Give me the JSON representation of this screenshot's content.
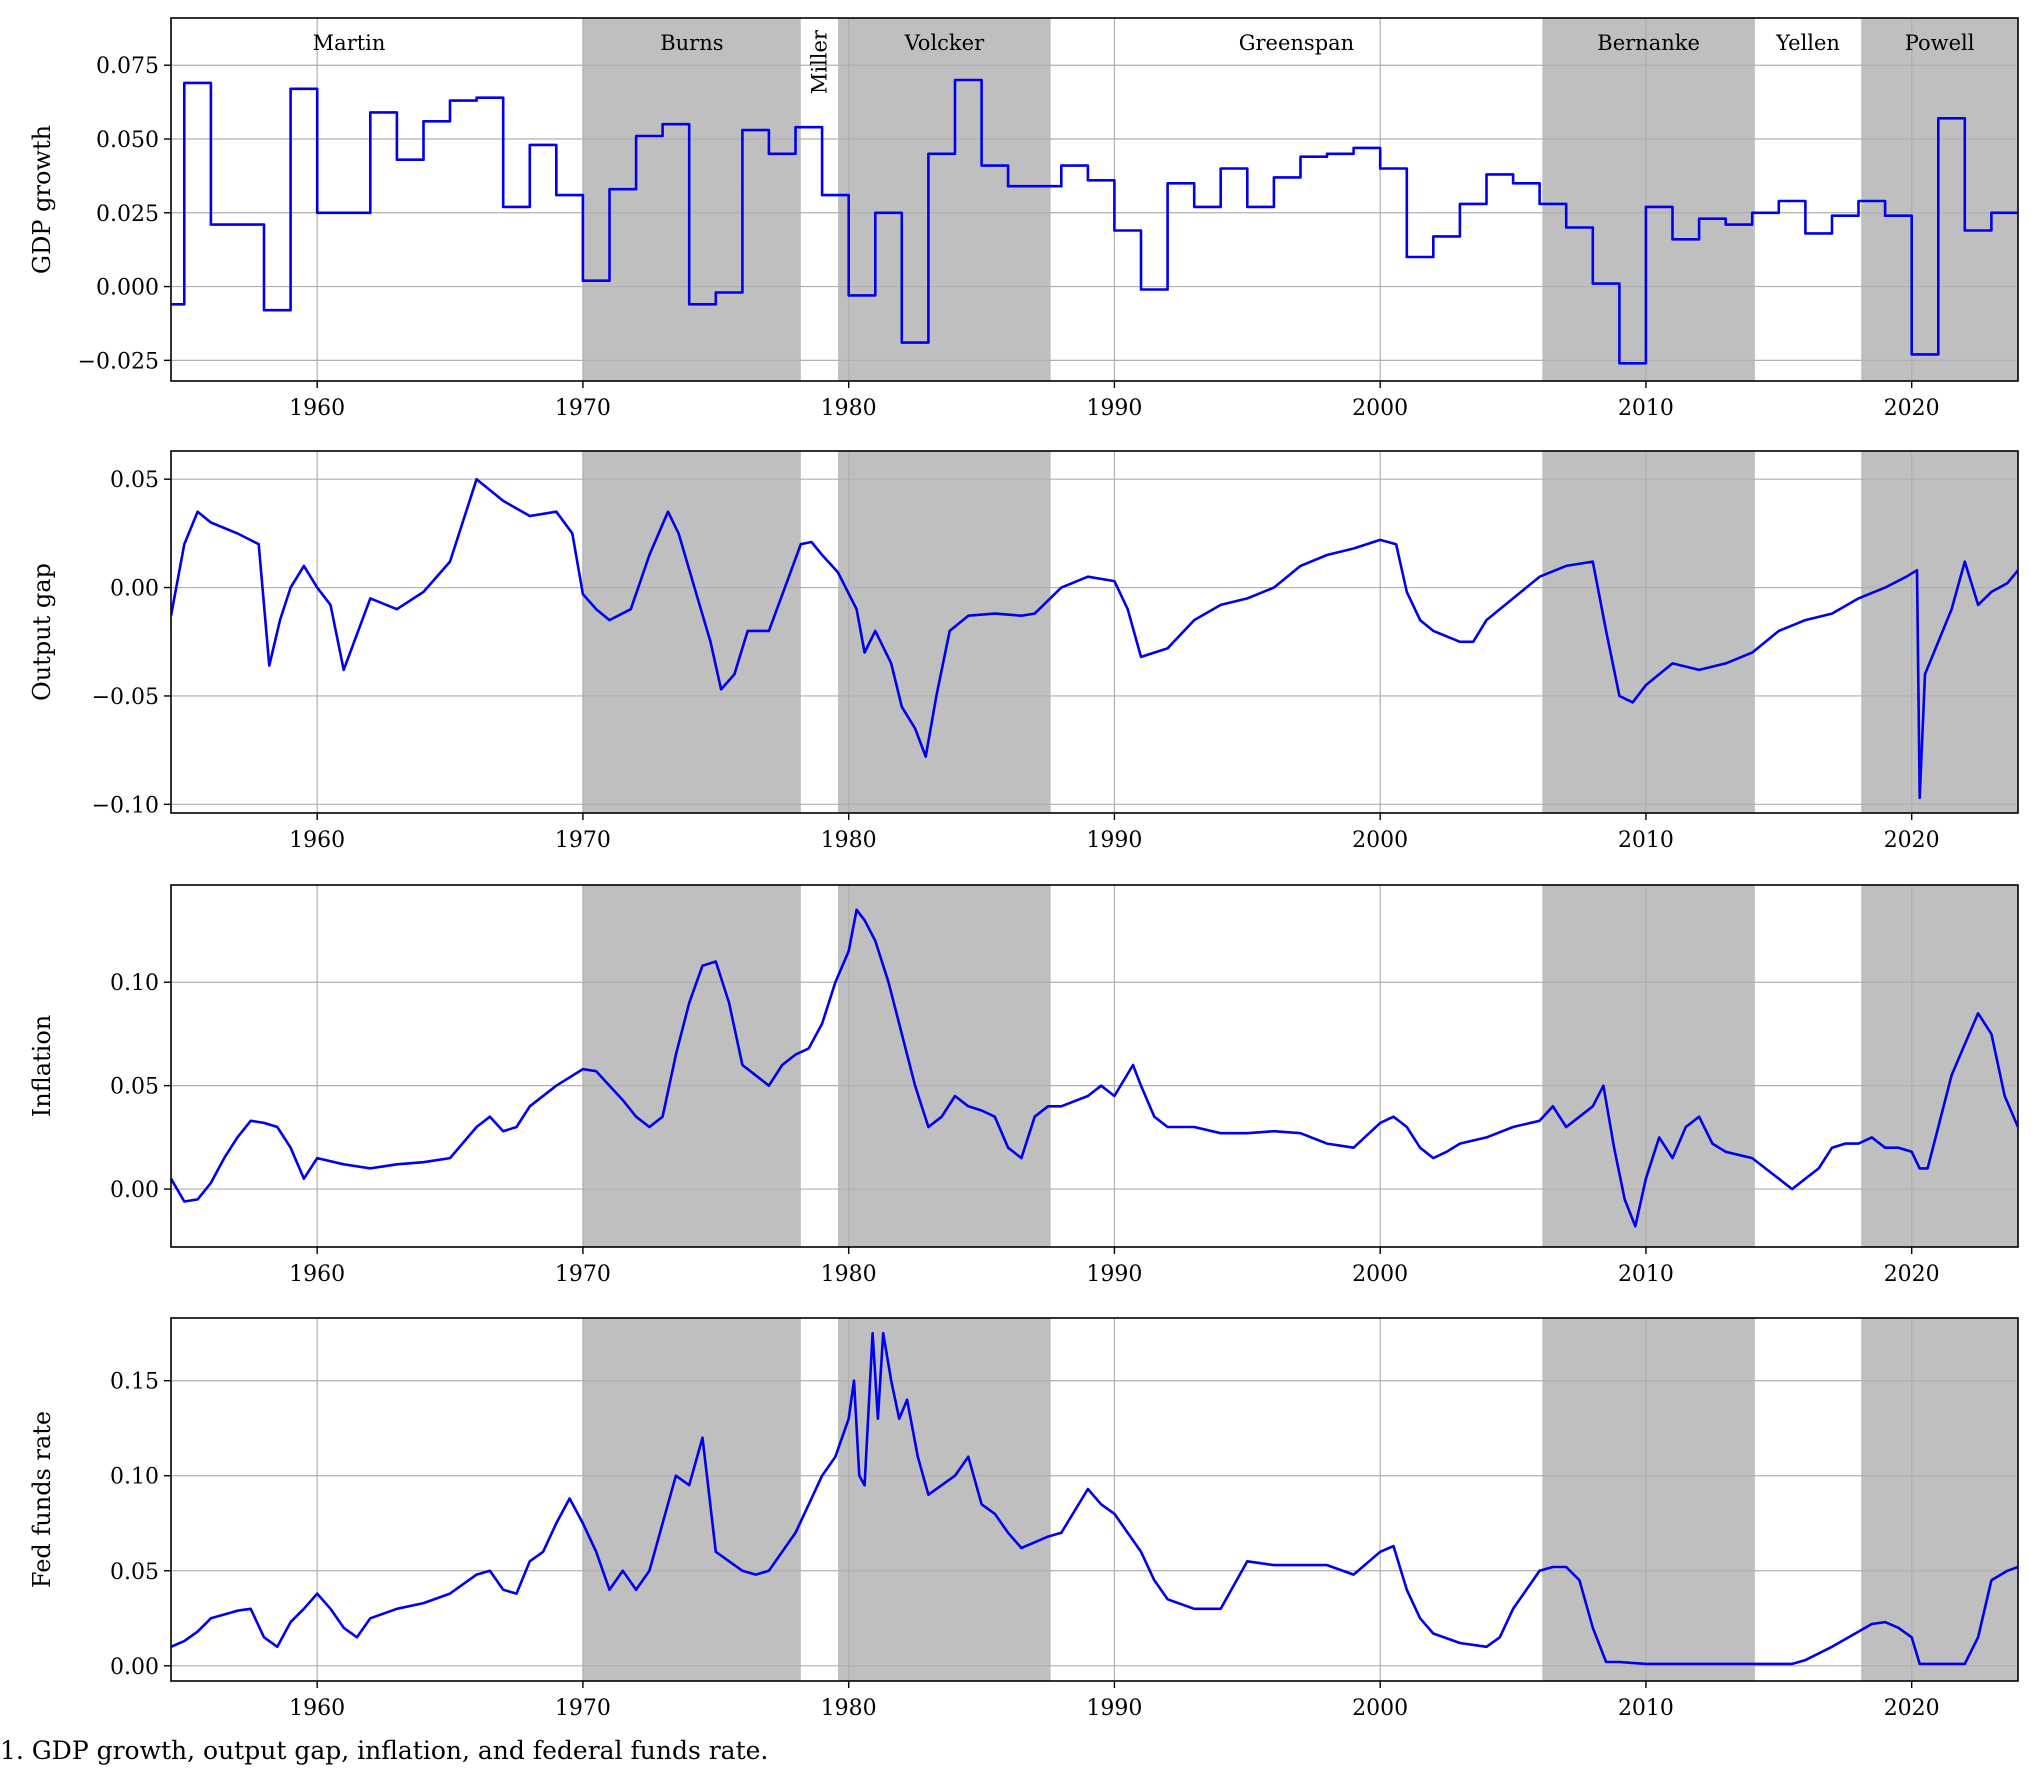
{
  "figure": {
    "caption": "1. GDP growth, output gap, inflation, and federal funds rate."
  },
  "colors": {
    "line": "#0000ee",
    "shade": "#bfbfbf",
    "grid": "#b0b0b0",
    "axis": "#000000"
  },
  "chairs": [
    {
      "name": "Martin",
      "start": 1951.2,
      "end": 1970.0,
      "shaded": false
    },
    {
      "name": "Burns",
      "start": 1970.0,
      "end": 1978.2,
      "shaded": true
    },
    {
      "name": "Miller",
      "start": 1978.2,
      "end": 1979.6,
      "shaded": false,
      "rotated": true
    },
    {
      "name": "Volcker",
      "start": 1979.6,
      "end": 1987.6,
      "shaded": true
    },
    {
      "name": "Greenspan",
      "start": 1987.6,
      "end": 2006.1,
      "shaded": false
    },
    {
      "name": "Bernanke",
      "start": 2006.1,
      "end": 2014.1,
      "shaded": true
    },
    {
      "name": "Yellen",
      "start": 2014.1,
      "end": 2018.1,
      "shaded": false
    },
    {
      "name": "Powell",
      "start": 2018.1,
      "end": 2024.0,
      "shaded": true
    }
  ],
  "chart_data": [
    {
      "type": "line",
      "ylabel": "GDP growth",
      "xlim": [
        1954.5,
        2024.0
      ],
      "ylim": [
        -0.032,
        0.091
      ],
      "xticks": [
        1960,
        1970,
        1980,
        1990,
        2000,
        2010,
        2020
      ],
      "yticks": [
        -0.025,
        0.0,
        0.025,
        0.05,
        0.075
      ],
      "ytick_labels": [
        "−0.025",
        "0.000",
        "0.025",
        "0.050",
        "0.075"
      ],
      "step": true,
      "grid": true,
      "show_chair_labels": true,
      "series": [
        {
          "x": [
            1954.5,
            1955.0,
            1956.0,
            1957.0,
            1958.0,
            1959.0,
            1960.0,
            1962.0,
            1963.0,
            1964.0,
            1965.0,
            1966.0,
            1967.0,
            1968.0,
            1969.0,
            1970.0,
            1971.0,
            1972.0,
            1973.0,
            1974.0,
            1975.0,
            1976.0,
            1977.0,
            1978.0,
            1979.0,
            1980.0,
            1981.0,
            1982.0,
            1983.0,
            1984.0,
            1985.0,
            1986.0,
            1988.0,
            1989.0,
            1990.0,
            1991.0,
            1992.0,
            1993.0,
            1994.0,
            1995.0,
            1996.0,
            1997.0,
            1998.0,
            1999.0,
            2000.0,
            2001.0,
            2002.0,
            2003.0,
            2004.0,
            2005.0,
            2006.0,
            2007.0,
            2008.0,
            2009.0,
            2010.0,
            2011.0,
            2012.0,
            2013.0,
            2014.0,
            2015.0,
            2016.0,
            2017.0,
            2018.0,
            2019.0,
            2020.0,
            2021.0,
            2022.0,
            2023.0,
            2024.0
          ],
          "y": [
            -0.006,
            0.069,
            0.021,
            0.021,
            -0.008,
            0.067,
            0.025,
            0.059,
            0.043,
            0.056,
            0.063,
            0.064,
            0.027,
            0.048,
            0.031,
            0.002,
            0.033,
            0.051,
            0.055,
            -0.006,
            -0.002,
            0.053,
            0.045,
            0.054,
            0.031,
            -0.003,
            0.025,
            -0.019,
            0.045,
            0.07,
            0.041,
            0.034,
            0.041,
            0.036,
            0.019,
            -0.001,
            0.035,
            0.027,
            0.04,
            0.027,
            0.037,
            0.044,
            0.045,
            0.047,
            0.04,
            0.01,
            0.017,
            0.028,
            0.038,
            0.035,
            0.028,
            0.02,
            0.001,
            -0.026,
            0.027,
            0.016,
            0.023,
            0.021,
            0.025,
            0.029,
            0.018,
            0.024,
            0.029,
            0.024,
            -0.023,
            0.057,
            0.019,
            0.025,
            0.025
          ]
        }
      ]
    },
    {
      "type": "line",
      "ylabel": "Output gap",
      "xlim": [
        1954.5,
        2024.0
      ],
      "ylim": [
        -0.104,
        0.063
      ],
      "xticks": [
        1960,
        1970,
        1980,
        1990,
        2000,
        2010,
        2020
      ],
      "yticks": [
        -0.1,
        -0.05,
        0.0,
        0.05
      ],
      "ytick_labels": [
        "−0.10",
        "−0.05",
        "0.00",
        "0.05"
      ],
      "step": false,
      "grid": true,
      "series": [
        {
          "x": [
            1954.5,
            1955.0,
            1955.5,
            1956.0,
            1957.0,
            1957.8,
            1958.2,
            1958.6,
            1959.0,
            1959.5,
            1960.0,
            1960.5,
            1961.0,
            1962.0,
            1963.0,
            1964.0,
            1965.0,
            1966.0,
            1967.0,
            1968.0,
            1969.0,
            1969.6,
            1970.0,
            1970.5,
            1971.0,
            1971.8,
            1972.5,
            1973.2,
            1973.6,
            1974.2,
            1974.8,
            1975.2,
            1975.7,
            1976.2,
            1977.0,
            1977.6,
            1978.2,
            1978.6,
            1979.0,
            1979.6,
            1980.3,
            1980.6,
            1981.0,
            1981.6,
            1982.0,
            1982.5,
            1982.9,
            1983.3,
            1983.8,
            1984.5,
            1985.5,
            1986.5,
            1987.0,
            1988.0,
            1989.0,
            1990.0,
            1990.5,
            1991.0,
            1991.5,
            1992.0,
            1993.0,
            1994.0,
            1995.0,
            1996.0,
            1997.0,
            1998.0,
            1999.0,
            2000.0,
            2000.6,
            2001.0,
            2001.5,
            2002.0,
            2003.0,
            2003.5,
            2004.0,
            2005.0,
            2006.0,
            2007.0,
            2008.0,
            2008.5,
            2009.0,
            2009.5,
            2010.0,
            2011.0,
            2012.0,
            2013.0,
            2014.0,
            2015.0,
            2016.0,
            2017.0,
            2018.0,
            2019.0,
            2019.8,
            2020.2,
            2020.3,
            2020.5,
            2021.0,
            2021.5,
            2022.0,
            2022.5,
            2023.0,
            2023.6,
            2024.0
          ],
          "y": [
            -0.013,
            0.02,
            0.035,
            0.03,
            0.025,
            0.02,
            -0.036,
            -0.015,
            0.0,
            0.01,
            0.0,
            -0.008,
            -0.038,
            -0.005,
            -0.01,
            -0.002,
            0.012,
            0.05,
            0.04,
            0.033,
            0.035,
            0.025,
            -0.003,
            -0.01,
            -0.015,
            -0.01,
            0.015,
            0.035,
            0.025,
            0.0,
            -0.025,
            -0.047,
            -0.04,
            -0.02,
            -0.02,
            0.0,
            0.02,
            0.021,
            0.015,
            0.007,
            -0.01,
            -0.03,
            -0.02,
            -0.035,
            -0.055,
            -0.065,
            -0.078,
            -0.05,
            -0.02,
            -0.013,
            -0.012,
            -0.013,
            -0.012,
            0.0,
            0.005,
            0.003,
            -0.01,
            -0.032,
            -0.03,
            -0.028,
            -0.015,
            -0.008,
            -0.005,
            0.0,
            0.01,
            0.015,
            0.018,
            0.022,
            0.02,
            -0.002,
            -0.015,
            -0.02,
            -0.025,
            -0.025,
            -0.015,
            -0.005,
            0.005,
            0.01,
            0.012,
            -0.02,
            -0.05,
            -0.053,
            -0.045,
            -0.035,
            -0.038,
            -0.035,
            -0.03,
            -0.02,
            -0.015,
            -0.012,
            -0.005,
            0.0,
            0.005,
            0.008,
            -0.097,
            -0.04,
            -0.025,
            -0.01,
            0.012,
            -0.008,
            -0.002,
            0.002,
            0.008
          ]
        }
      ]
    },
    {
      "type": "line",
      "ylabel": "Inflation",
      "xlim": [
        1954.5,
        2024.0
      ],
      "ylim": [
        -0.028,
        0.147
      ],
      "xticks": [
        1960,
        1970,
        1980,
        1990,
        2000,
        2010,
        2020
      ],
      "yticks": [
        0.0,
        0.05,
        0.1
      ],
      "ytick_labels": [
        "0.00",
        "0.05",
        "0.10"
      ],
      "step": false,
      "grid": true,
      "series": [
        {
          "x": [
            1954.5,
            1955.0,
            1955.5,
            1956.0,
            1956.5,
            1957.0,
            1957.5,
            1958.0,
            1958.5,
            1959.0,
            1959.5,
            1960.0,
            1961.0,
            1962.0,
            1963.0,
            1964.0,
            1965.0,
            1966.0,
            1966.5,
            1967.0,
            1967.5,
            1968.0,
            1969.0,
            1970.0,
            1970.5,
            1971.0,
            1971.5,
            1972.0,
            1972.5,
            1973.0,
            1973.5,
            1974.0,
            1974.5,
            1975.0,
            1975.5,
            1976.0,
            1976.5,
            1977.0,
            1977.5,
            1978.0,
            1978.5,
            1979.0,
            1979.5,
            1980.0,
            1980.3,
            1980.6,
            1981.0,
            1981.5,
            1982.0,
            1982.5,
            1983.0,
            1983.5,
            1984.0,
            1984.5,
            1985.0,
            1985.5,
            1986.0,
            1986.5,
            1987.0,
            1987.5,
            1988.0,
            1989.0,
            1989.5,
            1990.0,
            1990.7,
            1991.0,
            1991.5,
            1992.0,
            1993.0,
            1994.0,
            1995.0,
            1996.0,
            1997.0,
            1998.0,
            1999.0,
            2000.0,
            2000.5,
            2001.0,
            2001.5,
            2002.0,
            2002.5,
            2003.0,
            2004.0,
            2005.0,
            2006.0,
            2006.5,
            2007.0,
            2007.5,
            2008.0,
            2008.4,
            2008.8,
            2009.2,
            2009.6,
            2010.0,
            2010.5,
            2011.0,
            2011.5,
            2012.0,
            2012.5,
            2013.0,
            2014.0,
            2015.0,
            2015.5,
            2016.0,
            2016.5,
            2017.0,
            2017.5,
            2018.0,
            2018.5,
            2019.0,
            2019.5,
            2020.0,
            2020.3,
            2020.6,
            2021.0,
            2021.5,
            2022.0,
            2022.5,
            2023.0,
            2023.5,
            2024.0
          ],
          "y": [
            0.005,
            -0.006,
            -0.005,
            0.003,
            0.015,
            0.025,
            0.033,
            0.032,
            0.03,
            0.02,
            0.005,
            0.015,
            0.012,
            0.01,
            0.012,
            0.013,
            0.015,
            0.03,
            0.035,
            0.028,
            0.03,
            0.04,
            0.05,
            0.058,
            0.057,
            0.05,
            0.043,
            0.035,
            0.03,
            0.035,
            0.065,
            0.09,
            0.108,
            0.11,
            0.09,
            0.06,
            0.055,
            0.05,
            0.06,
            0.065,
            0.068,
            0.08,
            0.1,
            0.115,
            0.135,
            0.13,
            0.12,
            0.1,
            0.075,
            0.05,
            0.03,
            0.035,
            0.045,
            0.04,
            0.038,
            0.035,
            0.02,
            0.015,
            0.035,
            0.04,
            0.04,
            0.045,
            0.05,
            0.045,
            0.06,
            0.05,
            0.035,
            0.03,
            0.03,
            0.027,
            0.027,
            0.028,
            0.027,
            0.022,
            0.02,
            0.032,
            0.035,
            0.03,
            0.02,
            0.015,
            0.018,
            0.022,
            0.025,
            0.03,
            0.033,
            0.04,
            0.03,
            0.035,
            0.04,
            0.05,
            0.02,
            -0.005,
            -0.018,
            0.005,
            0.025,
            0.015,
            0.03,
            0.035,
            0.022,
            0.018,
            0.015,
            0.005,
            0.0,
            0.005,
            0.01,
            0.02,
            0.022,
            0.022,
            0.025,
            0.02,
            0.02,
            0.018,
            0.01,
            0.01,
            0.03,
            0.055,
            0.07,
            0.085,
            0.075,
            0.045,
            0.03
          ]
        }
      ]
    },
    {
      "type": "line",
      "ylabel": "Fed funds rate",
      "xlim": [
        1954.5,
        2024.0
      ],
      "ylim": [
        -0.008,
        0.183
      ],
      "xticks": [
        1960,
        1970,
        1980,
        1990,
        2000,
        2010,
        2020
      ],
      "yticks": [
        0.0,
        0.05,
        0.1,
        0.15
      ],
      "ytick_labels": [
        "0.00",
        "0.05",
        "0.10",
        "0.15"
      ],
      "step": false,
      "grid": true,
      "series": [
        {
          "x": [
            1954.5,
            1955.0,
            1955.5,
            1956.0,
            1956.5,
            1957.0,
            1957.5,
            1958.0,
            1958.5,
            1959.0,
            1959.5,
            1960.0,
            1960.5,
            1961.0,
            1961.5,
            1962.0,
            1963.0,
            1964.0,
            1965.0,
            1966.0,
            1966.5,
            1967.0,
            1967.5,
            1968.0,
            1968.5,
            1969.0,
            1969.5,
            1970.0,
            1970.5,
            1971.0,
            1971.5,
            1972.0,
            1972.5,
            1973.0,
            1973.5,
            1974.0,
            1974.5,
            1975.0,
            1975.5,
            1976.0,
            1976.5,
            1977.0,
            1977.5,
            1978.0,
            1978.5,
            1979.0,
            1979.5,
            1980.0,
            1980.2,
            1980.4,
            1980.6,
            1980.9,
            1981.1,
            1981.3,
            1981.6,
            1981.9,
            1982.2,
            1982.6,
            1983.0,
            1984.0,
            1984.5,
            1985.0,
            1985.5,
            1986.0,
            1986.5,
            1987.0,
            1987.5,
            1988.0,
            1989.0,
            1989.5,
            1990.0,
            1991.0,
            1991.5,
            1992.0,
            1993.0,
            1994.0,
            1995.0,
            1996.0,
            1997.0,
            1998.0,
            1999.0,
            2000.0,
            2000.5,
            2001.0,
            2001.5,
            2002.0,
            2003.0,
            2004.0,
            2004.5,
            2005.0,
            2006.0,
            2006.5,
            2007.0,
            2007.5,
            2008.0,
            2008.5,
            2009.0,
            2010.0,
            2012.0,
            2014.0,
            2015.5,
            2016.0,
            2017.0,
            2018.0,
            2018.5,
            2019.0,
            2019.5,
            2020.0,
            2020.3,
            2020.6,
            2021.0,
            2022.0,
            2022.5,
            2023.0,
            2023.6,
            2024.0
          ],
          "y": [
            0.01,
            0.013,
            0.018,
            0.025,
            0.027,
            0.029,
            0.03,
            0.015,
            0.01,
            0.023,
            0.03,
            0.038,
            0.03,
            0.02,
            0.015,
            0.025,
            0.03,
            0.033,
            0.038,
            0.048,
            0.05,
            0.04,
            0.038,
            0.055,
            0.06,
            0.075,
            0.088,
            0.075,
            0.06,
            0.04,
            0.05,
            0.04,
            0.05,
            0.075,
            0.1,
            0.095,
            0.12,
            0.06,
            0.055,
            0.05,
            0.048,
            0.05,
            0.06,
            0.07,
            0.085,
            0.1,
            0.11,
            0.13,
            0.15,
            0.1,
            0.095,
            0.175,
            0.13,
            0.175,
            0.15,
            0.13,
            0.14,
            0.11,
            0.09,
            0.1,
            0.11,
            0.085,
            0.08,
            0.07,
            0.062,
            0.065,
            0.068,
            0.07,
            0.093,
            0.085,
            0.08,
            0.06,
            0.045,
            0.035,
            0.03,
            0.03,
            0.055,
            0.053,
            0.053,
            0.053,
            0.048,
            0.06,
            0.063,
            0.04,
            0.025,
            0.017,
            0.012,
            0.01,
            0.015,
            0.03,
            0.05,
            0.052,
            0.052,
            0.045,
            0.02,
            0.002,
            0.002,
            0.001,
            0.001,
            0.001,
            0.001,
            0.003,
            0.01,
            0.018,
            0.022,
            0.023,
            0.02,
            0.015,
            0.001,
            0.001,
            0.001,
            0.001,
            0.015,
            0.045,
            0.05,
            0.052
          ]
        }
      ]
    }
  ]
}
